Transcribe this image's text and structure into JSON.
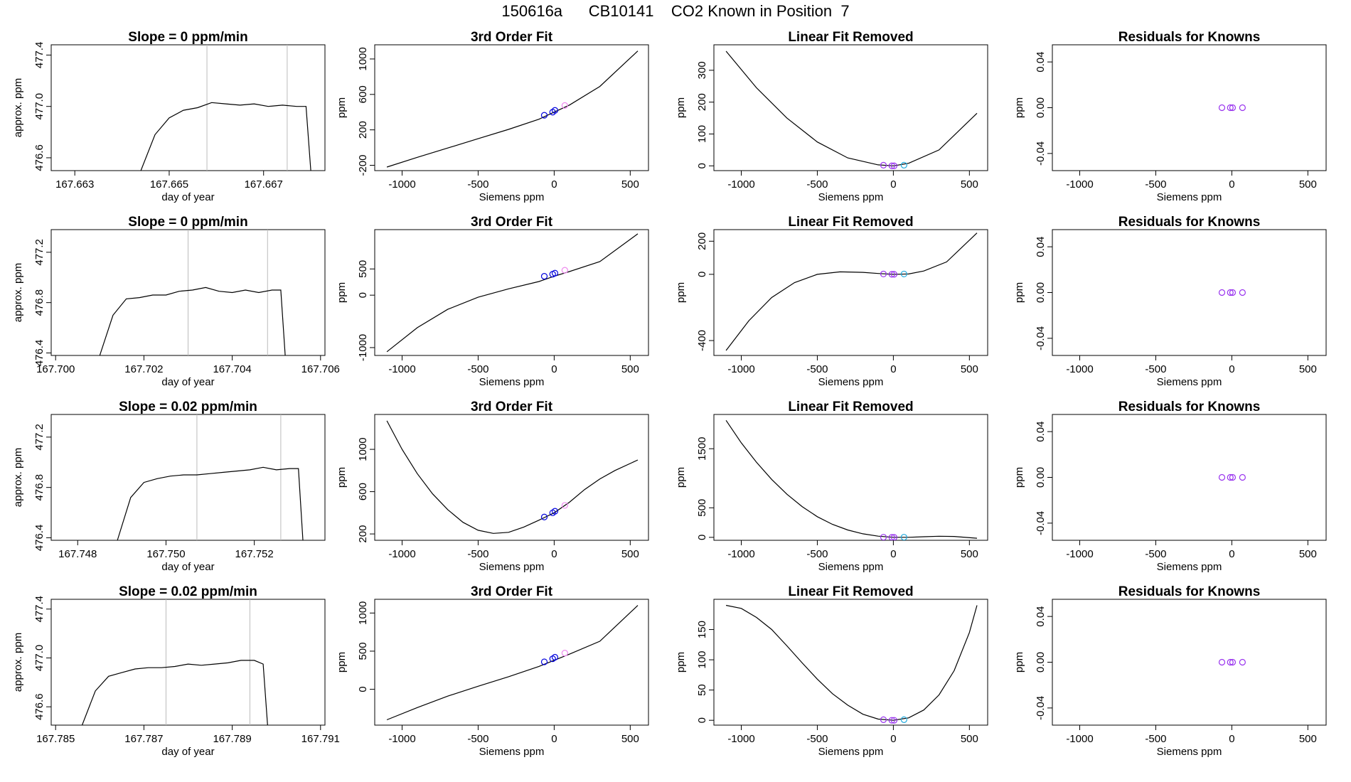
{
  "page": {
    "title": "150616a      CB10141    CO2 Known in Position  7"
  },
  "colors": {
    "axis": "#000000",
    "curve": "#000000",
    "marker_line": "#bbbbbb",
    "circle_blue": "#0000dd",
    "circle_pink": "#ee88ee",
    "circle_purple": "#9933ee",
    "circle_cyan": "#22aadd",
    "points_red": "#ff6666"
  },
  "chart_data": [
    {
      "type": "line",
      "title": "Slope =  0  ppm/min",
      "xlabel": "day of year",
      "ylabel": "approx. ppm",
      "xlim": [
        167.6625,
        167.6683
      ],
      "ylim": [
        476.5,
        477.48
      ],
      "xticks": [
        "167.663",
        "167.665",
        "167.667"
      ],
      "xtick_values": [
        167.663,
        167.665,
        167.667
      ],
      "yticks": [
        "476.6",
        "477.0",
        "477.4"
      ],
      "ytick_values": [
        476.6,
        477.0,
        477.4
      ],
      "vlines": [
        167.6658,
        167.6675
      ],
      "x": [
        167.6644,
        167.6647,
        167.665,
        167.6653,
        167.6656,
        167.6659,
        167.6662,
        167.6665,
        167.6668,
        167.6671,
        167.6674,
        167.6677,
        167.6679,
        167.668
      ],
      "y": [
        476.5,
        476.78,
        476.91,
        476.97,
        476.99,
        477.03,
        477.02,
        477.01,
        477.02,
        477.0,
        477.01,
        477.0,
        477.0,
        476.5
      ]
    },
    {
      "type": "line",
      "title": "3rd Order Fit",
      "xlabel": "Siemens ppm",
      "ylabel": "ppm",
      "xlim": [
        -1180,
        620
      ],
      "ylim": [
        -260,
        1160
      ],
      "xticks": [
        "-1000",
        "-500",
        "0",
        "500"
      ],
      "xtick_values": [
        -1000,
        -500,
        0,
        500
      ],
      "yticks": [
        "-200",
        "200",
        "600",
        "1000"
      ],
      "ytick_values": [
        -200,
        200,
        600,
        1000
      ],
      "x": [
        -1100,
        -900,
        -700,
        -500,
        -300,
        -100,
        0,
        100,
        300,
        550
      ],
      "y": [
        -220,
        -110,
        -5,
        100,
        205,
        320,
        400,
        480,
        690,
        1090
      ],
      "circles": [
        [
          -65,
          365,
          "blue"
        ],
        [
          -10,
          400,
          "blue"
        ],
        [
          5,
          420,
          "blue"
        ],
        [
          70,
          475,
          "pink"
        ]
      ]
    },
    {
      "type": "line",
      "title": "Linear Fit Removed",
      "xlabel": "Siemens ppm",
      "ylabel": "ppm",
      "xlim": [
        -1180,
        620
      ],
      "ylim": [
        -15,
        380
      ],
      "xticks": [
        "-1000",
        "-500",
        "0",
        "500"
      ],
      "xtick_values": [
        -1000,
        -500,
        0,
        500
      ],
      "yticks": [
        "0",
        "100",
        "200",
        "300"
      ],
      "ytick_values": [
        0,
        100,
        200,
        300
      ],
      "x": [
        -1100,
        -900,
        -700,
        -500,
        -300,
        -100,
        0,
        100,
        300,
        550
      ],
      "y": [
        360,
        245,
        150,
        75,
        25,
        3,
        0,
        8,
        50,
        165
      ],
      "circles": [
        [
          -65,
          2,
          "purple"
        ],
        [
          -10,
          0,
          "purple"
        ],
        [
          5,
          0,
          "purple"
        ],
        [
          70,
          2,
          "cyan"
        ]
      ]
    },
    {
      "type": "scatter",
      "title": "Residuals for Knowns",
      "xlabel": "Siemens ppm",
      "ylabel": "ppm",
      "xlim": [
        -1180,
        620
      ],
      "ylim": [
        -0.055,
        0.055
      ],
      "xticks": [
        "-1000",
        "-500",
        "0",
        "500"
      ],
      "xtick_values": [
        -1000,
        -500,
        0,
        500
      ],
      "yticks": [
        "-0.04",
        "0.00",
        "0.04"
      ],
      "ytick_values": [
        -0.04,
        0,
        0.04
      ],
      "circles": [
        [
          -65,
          0,
          "purple"
        ],
        [
          -10,
          0,
          "purple"
        ],
        [
          5,
          0,
          "purple"
        ],
        [
          70,
          0,
          "purple"
        ]
      ]
    },
    {
      "type": "line",
      "title": "Slope =  0  ppm/min",
      "xlabel": "day of year",
      "ylabel": "approx. ppm",
      "xlim": [
        167.6999,
        167.7061
      ],
      "ylim": [
        476.38,
        477.38
      ],
      "xticks": [
        "167.700",
        "167.702",
        "167.704",
        "167.706"
      ],
      "xtick_values": [
        167.7,
        167.702,
        167.704,
        167.706
      ],
      "yticks": [
        "476.4",
        "476.8",
        "477.2"
      ],
      "ytick_values": [
        476.4,
        476.8,
        477.2
      ],
      "vlines": [
        167.703,
        167.7048
      ],
      "x": [
        167.701,
        167.7013,
        167.7016,
        167.7019,
        167.7022,
        167.7025,
        167.7028,
        167.7031,
        167.7034,
        167.7037,
        167.704,
        167.7043,
        167.7046,
        167.7049,
        167.7051,
        167.7052
      ],
      "y": [
        476.38,
        476.7,
        476.83,
        476.84,
        476.86,
        476.86,
        476.89,
        476.9,
        476.92,
        476.89,
        476.88,
        476.9,
        476.88,
        476.9,
        476.9,
        476.38
      ]
    },
    {
      "type": "line",
      "title": "3rd Order Fit",
      "xlabel": "Siemens ppm",
      "ylabel": "ppm",
      "xlim": [
        -1180,
        620
      ],
      "ylim": [
        -1150,
        1250
      ],
      "xticks": [
        "-1000",
        "-500",
        "0",
        "500"
      ],
      "xtick_values": [
        -1000,
        -500,
        0,
        500
      ],
      "yticks": [
        "-1000",
        "0",
        "500"
      ],
      "ytick_values": [
        -1000,
        0,
        500
      ],
      "x": [
        -1100,
        -900,
        -700,
        -500,
        -300,
        -100,
        0,
        100,
        300,
        550
      ],
      "y": [
        -1080,
        -620,
        -270,
        -40,
        120,
        260,
        360,
        450,
        640,
        1170
      ],
      "circles": [
        [
          -65,
          360,
          "blue"
        ],
        [
          -10,
          400,
          "blue"
        ],
        [
          5,
          420,
          "blue"
        ],
        [
          70,
          475,
          "pink"
        ]
      ]
    },
    {
      "type": "line",
      "title": "Linear Fit Removed",
      "xlabel": "Siemens ppm",
      "ylabel": "ppm",
      "xlim": [
        -1180,
        620
      ],
      "ylim": [
        -490,
        270
      ],
      "xticks": [
        "-1000",
        "-500",
        "0",
        "500"
      ],
      "xtick_values": [
        -1000,
        -500,
        0,
        500
      ],
      "yticks": [
        "-400",
        "0",
        "200"
      ],
      "ytick_values": [
        -400,
        0,
        200
      ],
      "x": [
        -1100,
        -950,
        -800,
        -650,
        -500,
        -350,
        -200,
        -100,
        0,
        100,
        200,
        350,
        550
      ],
      "y": [
        -460,
        -280,
        -140,
        -50,
        0,
        15,
        12,
        5,
        0,
        2,
        20,
        75,
        250
      ],
      "circles": [
        [
          -65,
          2,
          "purple"
        ],
        [
          -10,
          0,
          "purple"
        ],
        [
          5,
          0,
          "purple"
        ],
        [
          70,
          2,
          "cyan"
        ]
      ]
    },
    {
      "type": "scatter",
      "title": "Residuals for Knowns",
      "xlabel": "Siemens ppm",
      "ylabel": "ppm",
      "xlim": [
        -1180,
        620
      ],
      "ylim": [
        -0.055,
        0.055
      ],
      "xticks": [
        "-1000",
        "-500",
        "0",
        "500"
      ],
      "xtick_values": [
        -1000,
        -500,
        0,
        500
      ],
      "yticks": [
        "-0.04",
        "0.00",
        "0.04"
      ],
      "ytick_values": [
        -0.04,
        0,
        0.04
      ],
      "circles": [
        [
          -65,
          0,
          "purple"
        ],
        [
          -10,
          0,
          "purple"
        ],
        [
          5,
          0,
          "purple"
        ],
        [
          70,
          0,
          "purple"
        ]
      ]
    },
    {
      "type": "line",
      "title": "Slope =  0.02  ppm/min",
      "xlabel": "day of year",
      "ylabel": "approx. ppm",
      "xlim": [
        167.7474,
        167.7536
      ],
      "ylim": [
        476.38,
        477.38
      ],
      "xticks": [
        "167.748",
        "167.750",
        "167.752"
      ],
      "xtick_values": [
        167.748,
        167.75,
        167.752
      ],
      "yticks": [
        "476.4",
        "476.8",
        "477.2"
      ],
      "ytick_values": [
        476.4,
        476.8,
        477.2
      ],
      "vlines": [
        167.7507,
        167.7526
      ],
      "x": [
        167.7489,
        167.7492,
        167.7495,
        167.7498,
        167.7501,
        167.7504,
        167.7507,
        167.751,
        167.7513,
        167.7516,
        167.7519,
        167.7522,
        167.7525,
        167.7528,
        167.753,
        167.7531
      ],
      "y": [
        476.38,
        476.72,
        476.84,
        476.87,
        476.89,
        476.9,
        476.9,
        476.91,
        476.92,
        476.93,
        476.94,
        476.96,
        476.94,
        476.95,
        476.95,
        476.38
      ]
    },
    {
      "type": "line",
      "title": "3rd Order Fit",
      "xlabel": "Siemens ppm",
      "ylabel": "ppm",
      "xlim": [
        -1180,
        620
      ],
      "ylim": [
        140,
        1330
      ],
      "xticks": [
        "-1000",
        "-500",
        "0",
        "500"
      ],
      "xtick_values": [
        -1000,
        -500,
        0,
        500
      ],
      "yticks": [
        "200",
        "600",
        "1000"
      ],
      "ytick_values": [
        200,
        600,
        1000
      ],
      "x": [
        -1100,
        -1000,
        -900,
        -800,
        -700,
        -600,
        -500,
        -400,
        -300,
        -200,
        -100,
        0,
        100,
        200,
        300,
        400,
        550
      ],
      "y": [
        1270,
        1000,
        770,
        580,
        430,
        310,
        235,
        205,
        215,
        265,
        330,
        400,
        500,
        620,
        720,
        800,
        900
      ],
      "circles": [
        [
          -65,
          360,
          "blue"
        ],
        [
          -10,
          400,
          "blue"
        ],
        [
          5,
          415,
          "blue"
        ],
        [
          70,
          470,
          "pink"
        ]
      ]
    },
    {
      "type": "line",
      "title": "Linear Fit Removed",
      "xlabel": "Siemens ppm",
      "ylabel": "ppm",
      "xlim": [
        -1180,
        620
      ],
      "ylim": [
        -50,
        2080
      ],
      "xticks": [
        "-1000",
        "-500",
        "0",
        "500"
      ],
      "xtick_values": [
        -1000,
        -500,
        0,
        500
      ],
      "yticks": [
        "0",
        "500",
        "1500"
      ],
      "ytick_values": [
        0,
        500,
        1500
      ],
      "x": [
        -1100,
        -1000,
        -900,
        -800,
        -700,
        -600,
        -500,
        -400,
        -300,
        -200,
        -100,
        0,
        100,
        200,
        300,
        400,
        550
      ],
      "y": [
        1980,
        1600,
        1270,
        980,
        730,
        520,
        350,
        220,
        125,
        60,
        20,
        0,
        0,
        10,
        18,
        15,
        -15
      ],
      "circles": [
        [
          -65,
          2,
          "purple"
        ],
        [
          -10,
          0,
          "purple"
        ],
        [
          5,
          0,
          "purple"
        ],
        [
          70,
          2,
          "cyan"
        ]
      ]
    },
    {
      "type": "scatter",
      "title": "Residuals for Knowns",
      "xlabel": "Siemens ppm",
      "ylabel": "ppm",
      "xlim": [
        -1180,
        620
      ],
      "ylim": [
        -0.055,
        0.055
      ],
      "xticks": [
        "-1000",
        "-500",
        "0",
        "500"
      ],
      "xtick_values": [
        -1000,
        -500,
        0,
        500
      ],
      "yticks": [
        "-0.04",
        "0.00",
        "0.04"
      ],
      "ytick_values": [
        -0.04,
        0,
        0.04
      ],
      "circles": [
        [
          -65,
          0,
          "purple"
        ],
        [
          -10,
          0,
          "purple"
        ],
        [
          5,
          0,
          "purple"
        ],
        [
          70,
          0,
          "purple"
        ]
      ]
    },
    {
      "type": "line",
      "title": "Slope =  0.02  ppm/min",
      "xlabel": "day of year",
      "ylabel": "approx. ppm",
      "xlim": [
        167.7849,
        167.7911
      ],
      "ylim": [
        476.45,
        477.48
      ],
      "xticks": [
        "167.785",
        "167.787",
        "167.789",
        "167.791"
      ],
      "xtick_values": [
        167.785,
        167.787,
        167.789,
        167.791
      ],
      "yticks": [
        "476.6",
        "477.0",
        "477.4"
      ],
      "ytick_values": [
        476.6,
        477.0,
        477.4
      ],
      "vlines": [
        167.7875,
        167.7894
      ],
      "x": [
        167.7856,
        167.7859,
        167.7862,
        167.7865,
        167.7868,
        167.7871,
        167.7874,
        167.7877,
        167.788,
        167.7883,
        167.7886,
        167.7889,
        167.7892,
        167.7895,
        167.7897,
        167.7898
      ],
      "y": [
        476.45,
        476.73,
        476.85,
        476.88,
        476.91,
        476.92,
        476.92,
        476.93,
        476.95,
        476.94,
        476.95,
        476.96,
        476.98,
        476.98,
        476.95,
        476.45
      ]
    },
    {
      "type": "line",
      "title": "3rd Order Fit",
      "xlabel": "Siemens ppm",
      "ylabel": "ppm",
      "xlim": [
        -1180,
        620
      ],
      "ylim": [
        -470,
        1180
      ],
      "xticks": [
        "-1000",
        "-500",
        "0",
        "500"
      ],
      "xtick_values": [
        -1000,
        -500,
        0,
        500
      ],
      "yticks": [
        "0",
        "500",
        "1000"
      ],
      "ytick_values": [
        0,
        500,
        1000
      ],
      "x": [
        -1100,
        -900,
        -700,
        -500,
        -300,
        -100,
        0,
        100,
        300,
        550
      ],
      "y": [
        -400,
        -240,
        -90,
        40,
        165,
        300,
        380,
        460,
        630,
        1100
      ],
      "circles": [
        [
          -65,
          360,
          "blue"
        ],
        [
          -10,
          400,
          "blue"
        ],
        [
          5,
          420,
          "blue"
        ],
        [
          70,
          475,
          "pink"
        ]
      ]
    },
    {
      "type": "line",
      "title": "Linear Fit Removed",
      "xlabel": "Siemens ppm",
      "ylabel": "ppm",
      "xlim": [
        -1180,
        620
      ],
      "ylim": [
        -8,
        200
      ],
      "xticks": [
        "-1000",
        "-500",
        "0",
        "500"
      ],
      "xtick_values": [
        -1000,
        -500,
        0,
        500
      ],
      "yticks": [
        "0",
        "50",
        "100",
        "150"
      ],
      "ytick_values": [
        0,
        50,
        100,
        150
      ],
      "x": [
        -1100,
        -1000,
        -900,
        -800,
        -700,
        -600,
        -500,
        -400,
        -300,
        -200,
        -100,
        0,
        100,
        200,
        300,
        400,
        500,
        550
      ],
      "y": [
        190,
        185,
        170,
        150,
        123,
        95,
        68,
        44,
        25,
        10,
        2,
        0,
        4,
        17,
        42,
        82,
        145,
        190
      ],
      "circles": [
        [
          -65,
          1,
          "purple"
        ],
        [
          -10,
          0,
          "purple"
        ],
        [
          5,
          0,
          "purple"
        ],
        [
          70,
          1,
          "cyan"
        ]
      ]
    },
    {
      "type": "scatter",
      "title": "Residuals for Knowns",
      "xlabel": "Siemens ppm",
      "ylabel": "ppm",
      "xlim": [
        -1180,
        620
      ],
      "ylim": [
        -0.055,
        0.055
      ],
      "xticks": [
        "-1000",
        "-500",
        "0",
        "500"
      ],
      "xtick_values": [
        -1000,
        -500,
        0,
        500
      ],
      "yticks": [
        "-0.04",
        "0.00",
        "0.04"
      ],
      "ytick_values": [
        -0.04,
        0,
        0.04
      ],
      "circles": [
        [
          -65,
          0,
          "purple"
        ],
        [
          -10,
          0,
          "purple"
        ],
        [
          5,
          0,
          "purple"
        ],
        [
          70,
          0,
          "purple"
        ]
      ]
    }
  ]
}
